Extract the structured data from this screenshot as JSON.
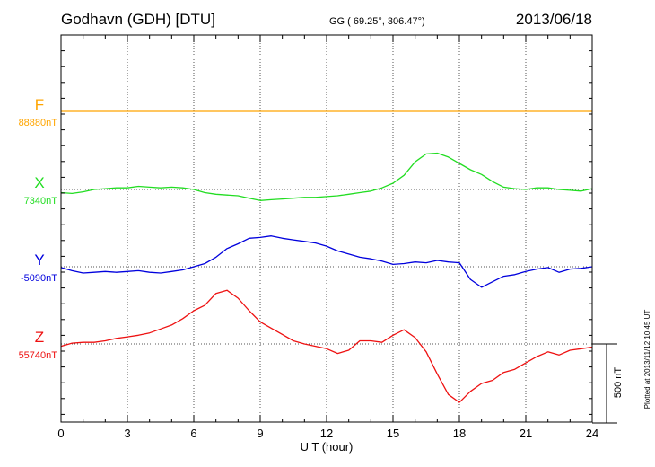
{
  "header": {
    "station": "Godhavn (GDH)  [DTU]",
    "coords": "GG ( 69.25°, 306.47°)",
    "date": "2013/06/18"
  },
  "footer": {
    "plotted": "Plotted at 2013/11/12 10:45 UT"
  },
  "scale_bar": {
    "label": "500 nT",
    "value_nT": 500
  },
  "chart_data": {
    "type": "line",
    "xlabel": "U T (hour)",
    "xlim": [
      0,
      24
    ],
    "xticks": [
      0,
      3,
      6,
      9,
      12,
      15,
      18,
      21,
      24
    ],
    "xtick_labels": [
      "0",
      "3",
      "6",
      "9",
      "12",
      "15",
      "18",
      "21",
      "24"
    ],
    "grid": true,
    "y_unit": "nT relative to baseline",
    "series": [
      {
        "name": "F",
        "baseline_label": "88880nT",
        "color": "#FFA500",
        "x": [
          0,
          24
        ],
        "values": [
          0,
          0
        ]
      },
      {
        "name": "X",
        "baseline_label": "7340nT",
        "color": "#22DD22",
        "x": [
          0,
          0.5,
          1,
          1.5,
          2,
          2.5,
          3,
          3.5,
          4,
          4.5,
          5,
          5.5,
          6,
          6.5,
          7,
          7.5,
          8,
          8.5,
          9,
          9.5,
          10,
          10.5,
          11,
          11.5,
          12,
          12.5,
          13,
          13.5,
          14,
          14.5,
          15,
          15.5,
          16,
          16.5,
          17,
          17.5,
          18,
          18.5,
          19,
          19.5,
          20,
          20.5,
          21,
          21.5,
          22,
          22.5,
          23,
          23.5,
          24
        ],
        "values": [
          -20,
          -25,
          -15,
          0,
          5,
          10,
          10,
          20,
          15,
          10,
          15,
          10,
          0,
          -20,
          -30,
          -35,
          -40,
          -55,
          -70,
          -65,
          -60,
          -55,
          -50,
          -50,
          -45,
          -40,
          -30,
          -20,
          -10,
          10,
          40,
          90,
          175,
          225,
          230,
          205,
          165,
          125,
          95,
          50,
          15,
          5,
          0,
          10,
          10,
          0,
          -5,
          -10,
          5
        ]
      },
      {
        "name": "Y",
        "baseline_label": "-5090nT",
        "color": "#0000DD",
        "x": [
          0,
          0.5,
          1,
          1.5,
          2,
          2.5,
          3,
          3.5,
          4,
          4.5,
          5,
          5.5,
          6,
          6.5,
          7,
          7.5,
          8,
          8.5,
          9,
          9.5,
          10,
          10.5,
          11,
          11.5,
          12,
          12.5,
          13,
          13.5,
          14,
          14.5,
          15,
          15.5,
          16,
          16.5,
          17,
          17.5,
          18,
          18.5,
          19,
          19.5,
          20,
          20.5,
          21,
          21.5,
          22,
          22.5,
          23,
          23.5,
          24
        ],
        "values": [
          -5,
          -25,
          -40,
          -35,
          -30,
          -35,
          -30,
          -25,
          -35,
          -40,
          -30,
          -20,
          0,
          20,
          60,
          115,
          145,
          180,
          185,
          195,
          180,
          170,
          160,
          150,
          130,
          100,
          80,
          60,
          50,
          35,
          15,
          20,
          30,
          25,
          40,
          30,
          25,
          -80,
          -130,
          -95,
          -60,
          -50,
          -30,
          -15,
          -5,
          -35,
          -15,
          -10,
          0
        ]
      },
      {
        "name": "Z",
        "baseline_label": "55740nT",
        "color": "#EE1111",
        "x": [
          0,
          0.5,
          1,
          1.5,
          2,
          2.5,
          3,
          3.5,
          4,
          4.5,
          5,
          5.5,
          6,
          6.5,
          7,
          7.5,
          8,
          8.5,
          9,
          9.5,
          10,
          10.5,
          11,
          11.5,
          12,
          12.5,
          13,
          13.5,
          14,
          14.5,
          15,
          15.5,
          16,
          16.5,
          17,
          17.5,
          18,
          18.5,
          19,
          19.5,
          20,
          20.5,
          21,
          21.5,
          22,
          22.5,
          23,
          23.5,
          24
        ],
        "values": [
          -15,
          5,
          10,
          10,
          20,
          35,
          45,
          55,
          70,
          95,
          120,
          160,
          210,
          245,
          320,
          340,
          290,
          210,
          140,
          100,
          60,
          20,
          0,
          -15,
          -30,
          -60,
          -40,
          20,
          20,
          10,
          55,
          90,
          40,
          -50,
          -190,
          -320,
          -370,
          -300,
          -250,
          -230,
          -180,
          -160,
          -120,
          -80,
          -50,
          -70,
          -40,
          -30,
          -20
        ]
      }
    ]
  }
}
